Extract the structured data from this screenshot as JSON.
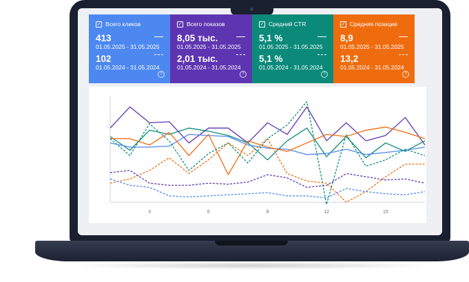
{
  "cards": [
    {
      "title": "Всего кликов",
      "color": "#4d88f0",
      "current_value": "413",
      "current_period": "01.05.2025 - 31.05.2025",
      "previous_value": "102",
      "previous_period": "01.05.2024 - 31.05.2024"
    },
    {
      "title": "Всего показов",
      "color": "#5e35b1",
      "current_value": "8,05 тыс.",
      "current_period": "01.05.2025 - 31.05.2025",
      "previous_value": "2,01 тыс.",
      "previous_period": "01.05.2024 - 31.05.2024"
    },
    {
      "title": "Средний CTR",
      "color": "#0b8a7a",
      "current_value": "5,1 %",
      "current_period": "01.05.2025 - 31.05.2025",
      "previous_value": "5,1 %",
      "previous_period": "01.05.2024 - 31.05.2024"
    },
    {
      "title": "Средняя позиция",
      "color": "#ef6c0e",
      "current_value": "8,9",
      "current_period": "01.05.2025 - 31.05.2025",
      "previous_value": "13,2",
      "previous_period": "01.05.2024 - 31.05.2024"
    }
  ],
  "chart_data": {
    "type": "line",
    "x_ticks": [
      3,
      6,
      9,
      12,
      15
    ],
    "xlim": [
      1,
      17
    ],
    "ylim": [
      0,
      100
    ],
    "grid": false,
    "legend": "none",
    "series": [
      {
        "color": "#5e35b1",
        "dashed": false,
        "x": [
          1,
          2,
          3,
          4,
          5,
          6,
          7,
          8,
          9,
          10,
          11,
          12,
          13,
          14,
          15,
          16,
          17
        ],
        "values": [
          70,
          90,
          75,
          76,
          56,
          70,
          70,
          56,
          75,
          64,
          90,
          58,
          75,
          58,
          63,
          80,
          54
        ]
      },
      {
        "color": "#0b8a7a",
        "dashed": false,
        "x": [
          1,
          2,
          3,
          4,
          5,
          6,
          7,
          8,
          9,
          10,
          11,
          12,
          13,
          14,
          15,
          16,
          17
        ],
        "values": [
          62,
          49,
          68,
          64,
          70,
          67,
          63,
          56,
          40,
          58,
          70,
          43,
          62,
          42,
          56,
          48,
          58
        ]
      },
      {
        "color": "#4d88f0",
        "dashed": false,
        "x": [
          1,
          2,
          3,
          4,
          5,
          6,
          7,
          8,
          9,
          10,
          11,
          12,
          13,
          14,
          15,
          16,
          17
        ],
        "values": [
          56,
          52,
          52,
          53,
          64,
          63,
          62,
          54,
          51,
          50,
          45,
          46,
          50,
          45,
          47,
          49,
          52
        ]
      },
      {
        "color": "#ef6c0e",
        "dashed": false,
        "x": [
          1,
          2,
          3,
          4,
          5,
          6,
          7,
          8,
          9,
          10,
          11,
          12,
          13,
          14,
          15,
          16,
          17
        ],
        "values": [
          60,
          60,
          54,
          66,
          44,
          64,
          26,
          58,
          52,
          48,
          56,
          64,
          62,
          68,
          71,
          66,
          60
        ]
      },
      {
        "color": "#0b8a7a",
        "dashed": true,
        "x": [
          1,
          2,
          3,
          4,
          5,
          6,
          7,
          8,
          9,
          10,
          11,
          12,
          13,
          14,
          15,
          16,
          17
        ],
        "values": [
          60,
          44,
          74,
          58,
          30,
          46,
          56,
          37,
          60,
          73,
          95,
          -2,
          64,
          34,
          40,
          50,
          44
        ]
      },
      {
        "color": "#ef6c0e",
        "dashed": true,
        "x": [
          1,
          2,
          3,
          4,
          5,
          6,
          7,
          8,
          9,
          10,
          11,
          12,
          13,
          14,
          15,
          16,
          17
        ],
        "values": [
          18,
          22,
          30,
          42,
          27,
          40,
          56,
          44,
          60,
          27,
          20,
          18,
          0,
          10,
          24,
          36,
          36
        ]
      },
      {
        "color": "#5e35b1",
        "dashed": true,
        "x": [
          1,
          2,
          3,
          4,
          5,
          6,
          7,
          8,
          9,
          10,
          11,
          12,
          13,
          14,
          15,
          16,
          17
        ],
        "values": [
          28,
          30,
          18,
          16,
          16,
          18,
          17,
          19,
          26,
          23,
          14,
          16,
          27,
          24,
          21,
          22,
          18
        ]
      },
      {
        "color": "#4d88f0",
        "dashed": true,
        "x": [
          1,
          2,
          3,
          4,
          5,
          6,
          7,
          8,
          9,
          10,
          11,
          12,
          13,
          14,
          15,
          16,
          17
        ],
        "values": [
          22,
          16,
          14,
          6,
          5,
          6,
          7,
          8,
          9,
          6,
          6,
          4,
          13,
          10,
          8,
          7,
          10
        ]
      }
    ]
  }
}
